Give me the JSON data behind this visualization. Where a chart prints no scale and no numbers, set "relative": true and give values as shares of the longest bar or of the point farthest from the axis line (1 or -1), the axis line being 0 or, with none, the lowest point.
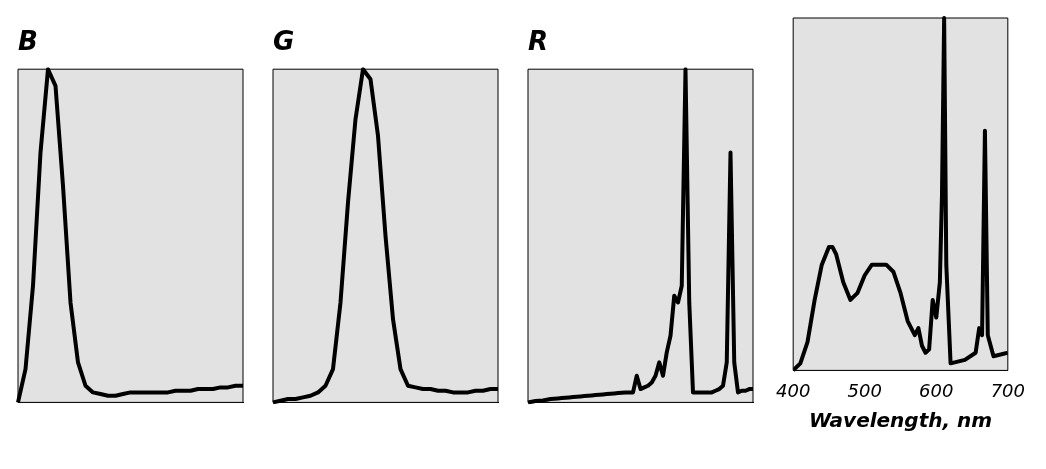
{
  "chart_data": [
    {
      "type": "line",
      "title": "B",
      "relative": true,
      "grid": false,
      "legend": false,
      "marker": "none",
      "line_style": "solid",
      "color": "#000000",
      "categories": [
        null,
        null,
        null,
        null,
        null,
        null,
        null,
        null,
        null,
        null,
        null,
        null,
        null,
        null,
        null,
        null,
        null,
        null,
        null,
        null,
        null,
        null,
        null,
        null,
        null,
        null,
        null,
        null,
        null,
        null,
        null
      ],
      "values": [
        0,
        0.1,
        0.35,
        0.75,
        1,
        0.95,
        0.65,
        0.3,
        0.12,
        0.05,
        0.03,
        0.025,
        0.02,
        0.02,
        0.025,
        0.03,
        0.03,
        0.03,
        0.03,
        0.03,
        0.03,
        0.035,
        0.035,
        0.035,
        0.04,
        0.04,
        0.04,
        0.045,
        0.045,
        0.05,
        0.05
      ]
    },
    {
      "type": "line",
      "title": "G",
      "relative": true,
      "grid": false,
      "legend": false,
      "marker": "none",
      "line_style": "solid",
      "color": "#000000",
      "categories": [
        null,
        null,
        null,
        null,
        null,
        null,
        null,
        null,
        null,
        null,
        null,
        null,
        null,
        null,
        null,
        null,
        null,
        null,
        null,
        null,
        null,
        null,
        null,
        null,
        null,
        null,
        null,
        null,
        null,
        null,
        null
      ],
      "values": [
        0,
        0.005,
        0.01,
        0.01,
        0.015,
        0.02,
        0.03,
        0.05,
        0.1,
        0.3,
        0.6,
        0.85,
        1,
        0.97,
        0.8,
        0.5,
        0.25,
        0.1,
        0.05,
        0.045,
        0.04,
        0.04,
        0.035,
        0.035,
        0.03,
        0.03,
        0.03,
        0.035,
        0.035,
        0.04,
        0.04
      ]
    },
    {
      "type": "line",
      "title": "R",
      "relative": true,
      "grid": false,
      "legend": false,
      "marker": "none",
      "line_style": "solid",
      "color": "#000000",
      "categories": [
        null,
        null,
        null,
        null,
        null,
        null,
        null,
        null,
        null,
        null,
        null,
        null,
        null,
        null,
        null,
        null,
        null,
        null,
        null,
        null,
        null,
        null,
        null,
        null,
        null,
        null,
        null,
        null,
        null,
        null,
        null,
        null,
        null,
        null,
        null,
        null,
        null,
        null,
        null,
        null,
        null,
        null,
        null,
        null,
        null,
        null,
        null,
        null,
        null,
        null,
        null,
        null,
        null,
        null,
        null,
        null,
        null,
        null,
        null,
        null,
        null
      ],
      "values": [
        0,
        0.002,
        0.004,
        0.005,
        0.006,
        0.008,
        0.01,
        0.011,
        0.012,
        0.013,
        0.014,
        0.015,
        0.016,
        0.017,
        0.018,
        0.019,
        0.02,
        0.021,
        0.022,
        0.023,
        0.024,
        0.025,
        0.026,
        0.027,
        0.028,
        0.029,
        0.03,
        0.03,
        0.03,
        0.08,
        0.04,
        0.045,
        0.05,
        0.06,
        0.08,
        0.12,
        0.08,
        0.15,
        0.2,
        0.32,
        0.3,
        0.35,
        1,
        0.3,
        0.03,
        0.03,
        0.03,
        0.03,
        0.03,
        0.03,
        0.035,
        0.04,
        0.05,
        0.12,
        0.75,
        0.12,
        0.03,
        0.035,
        0.035,
        0.04,
        0.04
      ]
    },
    {
      "type": "line",
      "relative": true,
      "xlabel": "Wavelength, nm",
      "xlim": [
        400,
        700
      ],
      "xticks": [
        400,
        500,
        600,
        700
      ],
      "grid": false,
      "legend": false,
      "marker": "none",
      "line_style": "solid",
      "color": "#000000",
      "x": [
        400,
        410,
        420,
        430,
        440,
        450,
        455,
        460,
        470,
        480,
        490,
        500,
        510,
        520,
        530,
        540,
        550,
        555,
        560,
        570,
        575,
        580,
        585,
        590,
        595,
        600,
        605,
        608,
        611,
        614,
        620,
        640,
        655,
        660,
        664,
        668,
        672,
        680,
        700
      ],
      "values": [
        0,
        0.02,
        0.08,
        0.2,
        0.3,
        0.35,
        0.35,
        0.33,
        0.25,
        0.2,
        0.22,
        0.27,
        0.3,
        0.3,
        0.3,
        0.28,
        0.22,
        0.18,
        0.14,
        0.1,
        0.12,
        0.07,
        0.05,
        0.06,
        0.2,
        0.15,
        0.25,
        0.5,
        1,
        0.3,
        0.02,
        0.03,
        0.05,
        0.12,
        0.1,
        0.68,
        0.1,
        0.04,
        0.05
      ]
    }
  ]
}
